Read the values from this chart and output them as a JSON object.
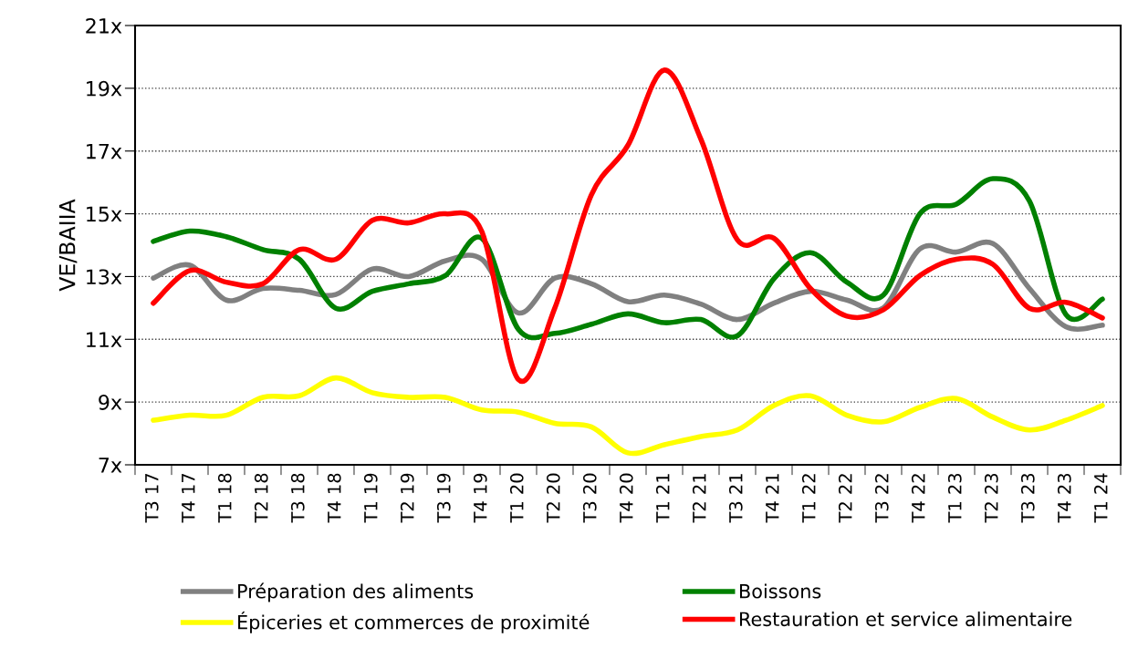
{
  "chart_data": {
    "type": "line",
    "ylabel": "VE/BAIIA",
    "categories": [
      "T3 17",
      "T4 17",
      "T1 18",
      "T2 18",
      "T3 18",
      "T4 18",
      "T1 19",
      "T2 19",
      "T3 19",
      "T4 19",
      "T1 20",
      "T2 20",
      "T3 20",
      "T4 20",
      "T1 21",
      "T2 21",
      "T3 21",
      "T4 21",
      "T1 22",
      "T2 22",
      "T3 22",
      "T4 22",
      "T1 23",
      "T2 23",
      "T3 23",
      "T4 23",
      "T1 24"
    ],
    "series": [
      {
        "name": "Préparation des aliments",
        "color": "#808080",
        "values": [
          12.95,
          13.36,
          12.25,
          12.62,
          12.56,
          12.43,
          13.24,
          13.0,
          13.5,
          13.55,
          11.84,
          12.95,
          12.77,
          12.2,
          12.41,
          12.12,
          11.63,
          12.15,
          12.53,
          12.25,
          12.0,
          13.88,
          13.78,
          14.05,
          12.62,
          11.4,
          11.45
        ]
      },
      {
        "name": "Boissons",
        "color": "#008000",
        "values": [
          14.12,
          14.45,
          14.27,
          13.86,
          13.55,
          11.99,
          12.53,
          12.77,
          13.03,
          14.22,
          11.32,
          11.19,
          11.48,
          11.81,
          11.53,
          11.63,
          11.11,
          12.93,
          13.76,
          12.82,
          12.41,
          15.0,
          15.31,
          16.12,
          15.41,
          11.79,
          12.28
        ]
      },
      {
        "name": "Épiceries et commerces de proximité",
        "color": "#ffff00",
        "values": [
          8.42,
          8.58,
          8.58,
          9.15,
          9.2,
          9.77,
          9.3,
          9.15,
          9.15,
          8.75,
          8.68,
          8.32,
          8.21,
          7.38,
          7.64,
          7.9,
          8.11,
          8.89,
          9.2,
          8.58,
          8.37,
          8.83,
          9.11,
          8.52,
          8.11,
          8.42,
          8.89
        ]
      },
      {
        "name": "Restauration et service alimentaire",
        "color": "#ff0000",
        "values": [
          12.15,
          13.19,
          12.82,
          12.77,
          13.86,
          13.55,
          14.79,
          14.71,
          15.0,
          14.43,
          9.72,
          12.0,
          15.6,
          17.18,
          19.58,
          17.38,
          14.17,
          14.22,
          12.62,
          11.74,
          11.94,
          13.03,
          13.55,
          13.39,
          11.99,
          12.18,
          11.68
        ]
      }
    ],
    "ylim": [
      7,
      21
    ],
    "yticks": [
      {
        "value": 7,
        "label": "7x"
      },
      {
        "value": 9,
        "label": "9x"
      },
      {
        "value": 11,
        "label": "11x"
      },
      {
        "value": 13,
        "label": "13x"
      },
      {
        "value": 15,
        "label": "15x"
      },
      {
        "value": 17,
        "label": "17x"
      },
      {
        "value": 19,
        "label": "19x"
      },
      {
        "value": 21,
        "label": "21x"
      }
    ],
    "grid": "y",
    "legend": "bottom",
    "marker": "none",
    "line_style": "solid"
  }
}
